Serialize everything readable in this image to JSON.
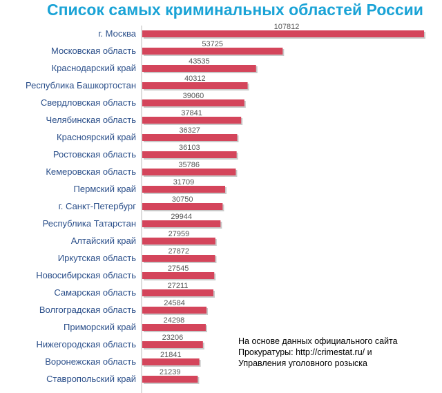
{
  "chart_data": {
    "type": "bar",
    "orientation": "horizontal",
    "title": "Список самых криминальных областей России",
    "categories": [
      "г. Москва",
      "Московская область",
      "Краснодарский край",
      "Республика Башкортостан",
      "Свердловская область",
      "Челябинская область",
      "Красноярский край",
      "Ростовская область",
      "Кемеровская область",
      "Пермский край",
      "г. Санкт-Петербург",
      "Республика Татарстан",
      "Алтайский край",
      "Иркутская область",
      "Новосибирская область",
      "Самарская область",
      "Волгоградская область",
      "Приморский край",
      "Нижегородская область",
      "Воронежская область",
      "Ставропольский край"
    ],
    "values": [
      107812,
      53725,
      43535,
      40312,
      39060,
      37841,
      36327,
      36103,
      35786,
      31709,
      30750,
      29944,
      27959,
      27872,
      27545,
      27211,
      24584,
      24298,
      23206,
      21841,
      21239
    ],
    "xlim": [
      0,
      107812
    ],
    "grid": false,
    "colors": {
      "bar": "#d4455b",
      "bar_shadow": "#c9c9c9",
      "title": "#1aa3d6",
      "label": "#2b4f8a"
    }
  },
  "note": {
    "lines": [
      "На основе данных официального сайта",
      "Прокуратуры: http://crimestat.ru/ и",
      "Управления уголовного розыска"
    ]
  }
}
